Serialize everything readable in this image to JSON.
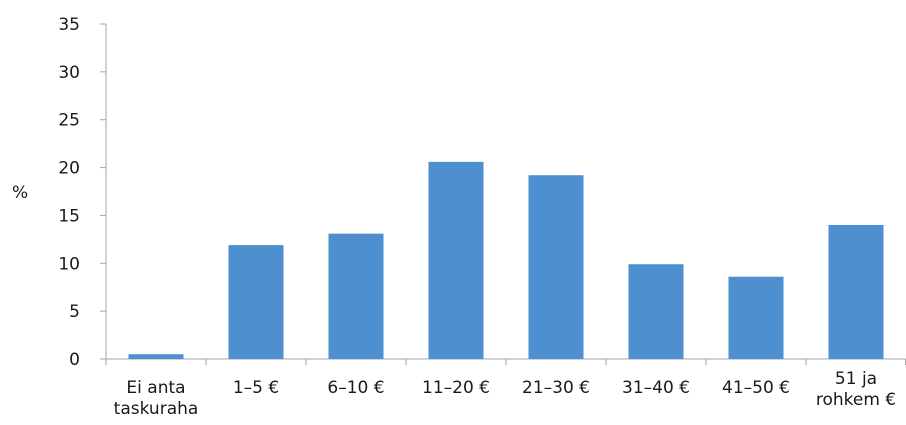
{
  "chart_data": {
    "type": "bar",
    "title": "",
    "xlabel": "",
    "ylabel": "%",
    "categories": [
      [
        "Ei anta",
        "taskuraha"
      ],
      [
        "1–5 €"
      ],
      [
        "6–10 €"
      ],
      [
        "11–20 €"
      ],
      [
        "21–30 €"
      ],
      [
        "31–40 €"
      ],
      [
        "41–50 €"
      ],
      [
        "51 ja",
        "rohkem €"
      ]
    ],
    "values": [
      0.5,
      11.9,
      13.1,
      20.6,
      19.2,
      9.9,
      8.6,
      14.0
    ],
    "ylim": [
      0,
      35
    ],
    "yticks": [
      0,
      5,
      10,
      15,
      20,
      25,
      30,
      35
    ],
    "grid": false,
    "legend": "none",
    "bar_color": "#4E8FCF",
    "axis_color": "#A6A6A6"
  }
}
